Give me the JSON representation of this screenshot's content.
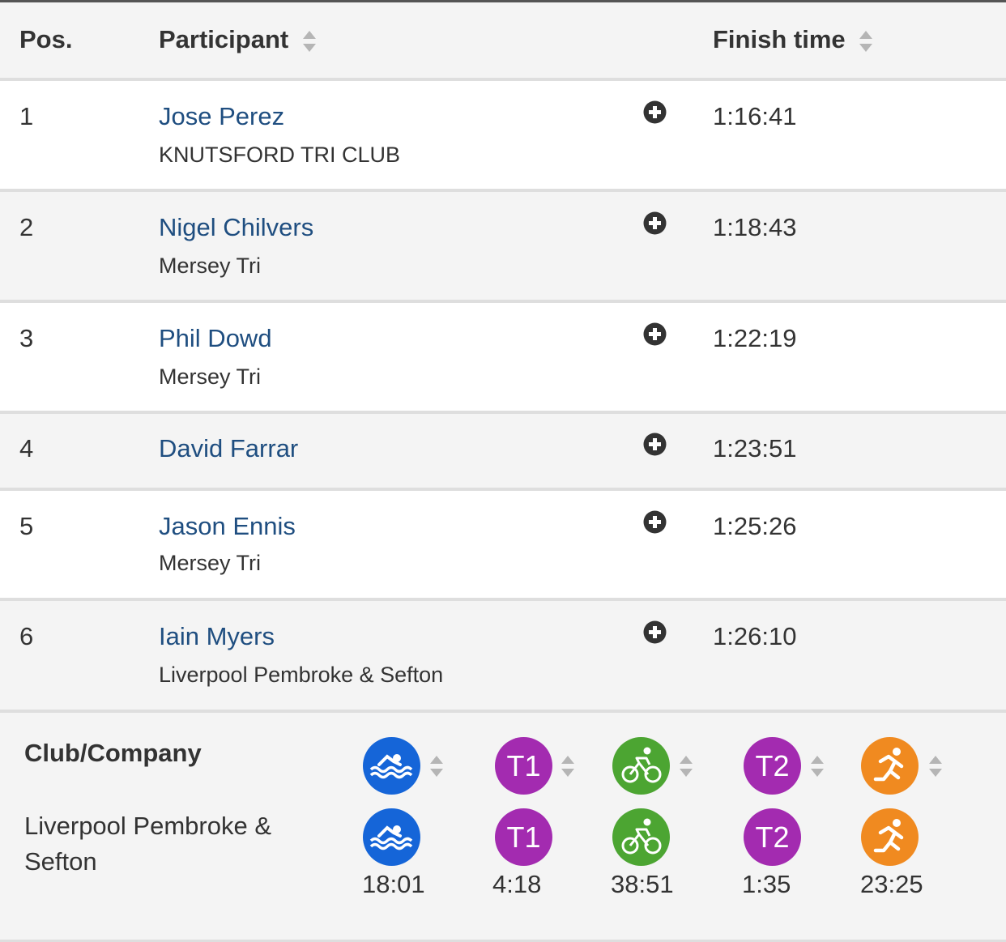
{
  "table": {
    "headers": {
      "pos": "Pos.",
      "participant": "Participant",
      "finish_time": "Finish time"
    },
    "rows": [
      {
        "pos": "1",
        "name": "Jose Perez",
        "club": "KNUTSFORD TRI CLUB",
        "time": "1:16:41"
      },
      {
        "pos": "2",
        "name": "Nigel Chilvers",
        "club": "Mersey Tri",
        "time": "1:18:43"
      },
      {
        "pos": "3",
        "name": "Phil Dowd",
        "club": "Mersey Tri",
        "time": "1:22:19"
      },
      {
        "pos": "4",
        "name": "David Farrar",
        "club": "",
        "time": "1:23:51"
      },
      {
        "pos": "5",
        "name": "Jason Ennis",
        "club": "Mersey Tri",
        "time": "1:25:26"
      },
      {
        "pos": "6",
        "name": "Iain Myers",
        "club": "Liverpool Pembroke & Sefton",
        "time": "1:26:10"
      }
    ]
  },
  "detail": {
    "club_heading": "Club/Company",
    "club_value": "Liverpool Pembroke & Sefton",
    "splits": [
      {
        "icon": "swim-icon",
        "label": "",
        "color": "#1565d8",
        "time": "18:01"
      },
      {
        "icon": "t1-icon",
        "label": "T1",
        "color": "#a32bb0",
        "time": "4:18"
      },
      {
        "icon": "bike-icon",
        "label": "",
        "color": "#4ca532",
        "time": "38:51"
      },
      {
        "icon": "t2-icon",
        "label": "T2",
        "color": "#a32bb0",
        "time": "1:35"
      },
      {
        "icon": "run-icon",
        "label": "",
        "color": "#f08a20",
        "time": "23:25"
      }
    ]
  },
  "colors": {
    "link": "#1f4e80",
    "swim": "#1565d8",
    "transition": "#a32bb0",
    "bike": "#4ca532",
    "run": "#f08a20"
  }
}
